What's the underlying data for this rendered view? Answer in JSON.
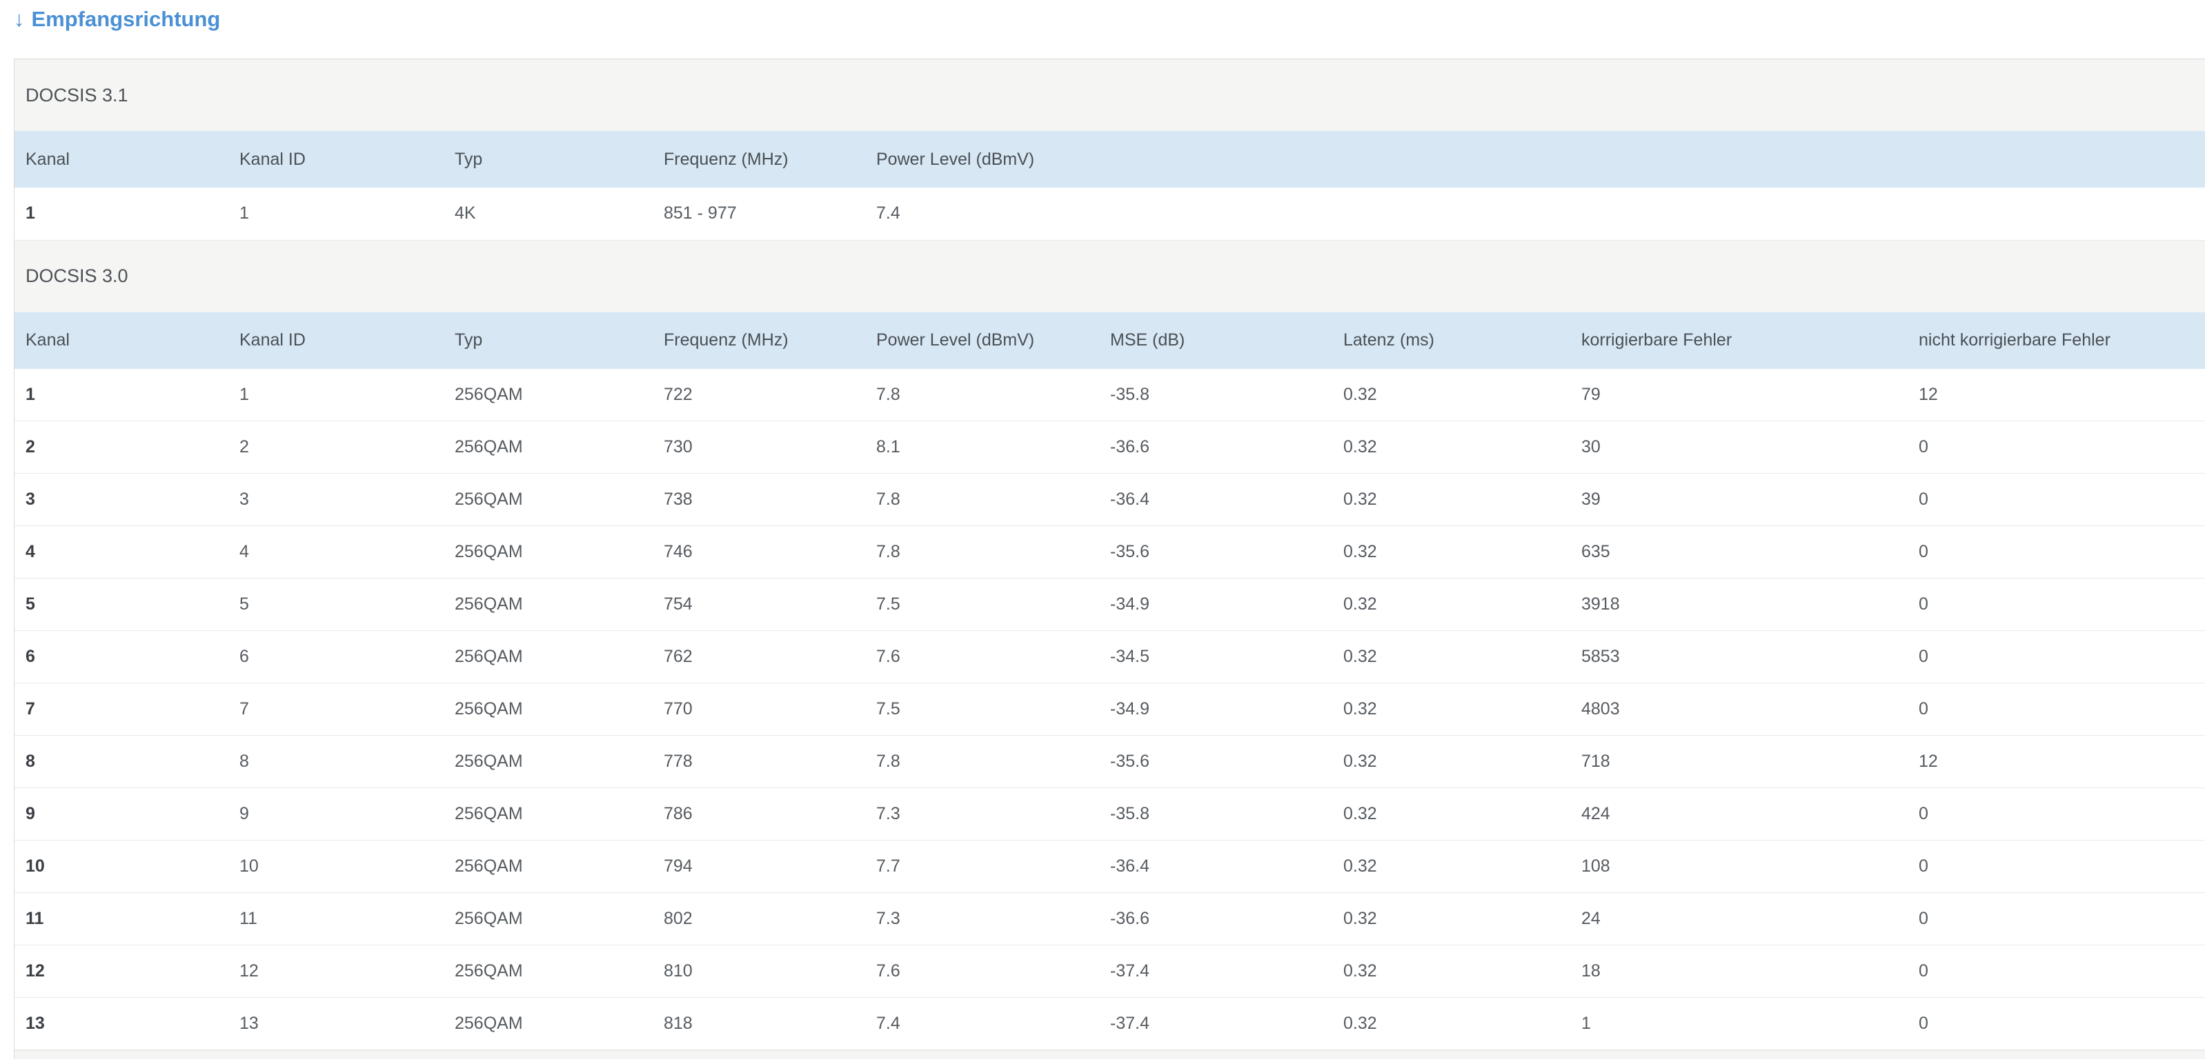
{
  "header": {
    "arrow_icon": "↓",
    "title": "Empfangsrichtung"
  },
  "sections": [
    {
      "label": "DOCSIS 3.1",
      "columns": [
        "Kanal",
        "Kanal ID",
        "Typ",
        "Frequenz (MHz)",
        "Power Level (dBmV)"
      ],
      "rows": [
        [
          "1",
          "1",
          "4K",
          "851 - 977",
          "7.4"
        ]
      ]
    },
    {
      "label": "DOCSIS 3.0",
      "columns": [
        "Kanal",
        "Kanal ID",
        "Typ",
        "Frequenz (MHz)",
        "Power Level (dBmV)",
        "MSE (dB)",
        "Latenz (ms)",
        "korrigierbare Fehler",
        "nicht korrigierbare Fehler"
      ],
      "rows": [
        [
          "1",
          "1",
          "256QAM",
          "722",
          "7.8",
          "-35.8",
          "0.32",
          "79",
          "12"
        ],
        [
          "2",
          "2",
          "256QAM",
          "730",
          "8.1",
          "-36.6",
          "0.32",
          "30",
          "0"
        ],
        [
          "3",
          "3",
          "256QAM",
          "738",
          "7.8",
          "-36.4",
          "0.32",
          "39",
          "0"
        ],
        [
          "4",
          "4",
          "256QAM",
          "746",
          "7.8",
          "-35.6",
          "0.32",
          "635",
          "0"
        ],
        [
          "5",
          "5",
          "256QAM",
          "754",
          "7.5",
          "-34.9",
          "0.32",
          "3918",
          "0"
        ],
        [
          "6",
          "6",
          "256QAM",
          "762",
          "7.6",
          "-34.5",
          "0.32",
          "5853",
          "0"
        ],
        [
          "7",
          "7",
          "256QAM",
          "770",
          "7.5",
          "-34.9",
          "0.32",
          "4803",
          "0"
        ],
        [
          "8",
          "8",
          "256QAM",
          "778",
          "7.8",
          "-35.6",
          "0.32",
          "718",
          "12"
        ],
        [
          "9",
          "9",
          "256QAM",
          "786",
          "7.3",
          "-35.8",
          "0.32",
          "424",
          "0"
        ],
        [
          "10",
          "10",
          "256QAM",
          "794",
          "7.7",
          "-36.4",
          "0.32",
          "108",
          "0"
        ],
        [
          "11",
          "11",
          "256QAM",
          "802",
          "7.3",
          "-36.6",
          "0.32",
          "24",
          "0"
        ],
        [
          "12",
          "12",
          "256QAM",
          "810",
          "7.6",
          "-37.4",
          "0.32",
          "18",
          "0"
        ],
        [
          "13",
          "13",
          "256QAM",
          "818",
          "7.4",
          "-37.4",
          "0.32",
          "1",
          "0"
        ]
      ]
    }
  ],
  "colors": {
    "accent_blue": "#4a90d5",
    "header_row_bg": "#d7e7f4",
    "section_bg": "#f5f5f3",
    "panel_border": "#d9d9d9",
    "row_border": "#e9e9e9"
  }
}
